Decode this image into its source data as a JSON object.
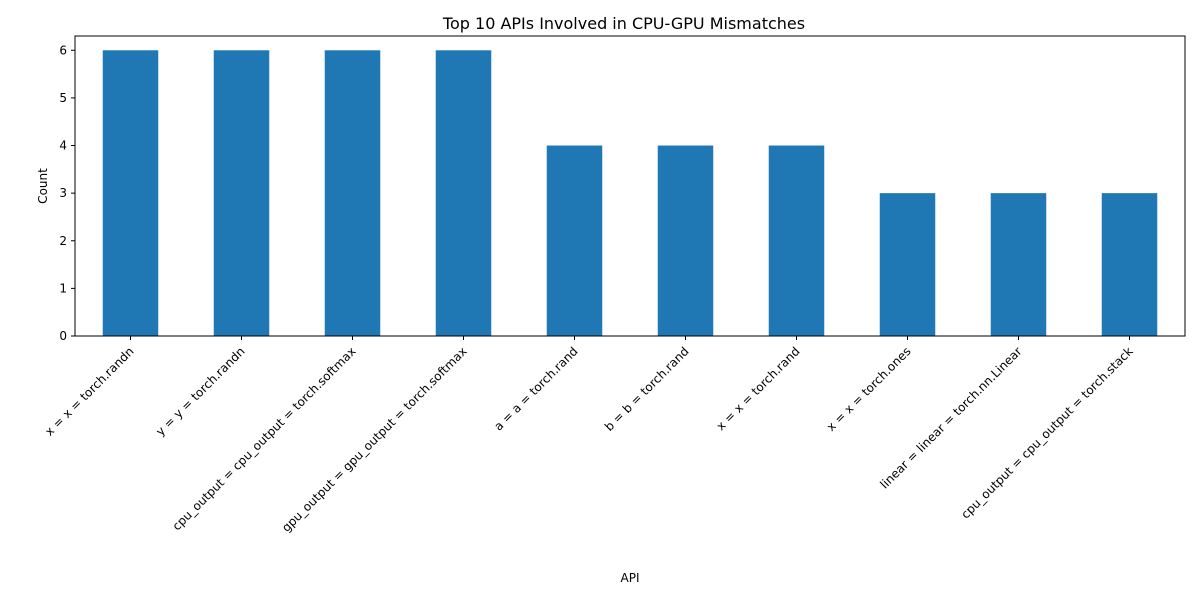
{
  "chart_data": {
    "type": "bar",
    "title": "Top 10 APIs Involved in CPU-GPU Mismatches",
    "xlabel": "API",
    "ylabel": "Count",
    "categories": [
      "x = x = torch.randn",
      "y = y = torch.randn",
      "cpu_output = cpu_output = torch.softmax",
      "gpu_output = gpu_output = torch.softmax",
      "a = a = torch.rand",
      "b = b = torch.rand",
      "x = x = torch.rand",
      "x = x = torch.ones",
      "linear = linear = torch.nn.Linear",
      "cpu_output = cpu_output = torch.stack"
    ],
    "values": [
      6,
      6,
      6,
      6,
      4,
      4,
      4,
      3,
      3,
      3
    ],
    "ylim": [
      0,
      6.3
    ],
    "yticks": [
      "0",
      "1",
      "2",
      "3",
      "4",
      "5",
      "6"
    ],
    "grid": false,
    "legend": "none",
    "colors": {
      "bar": "#1f77b4",
      "axis": "#000000"
    }
  }
}
